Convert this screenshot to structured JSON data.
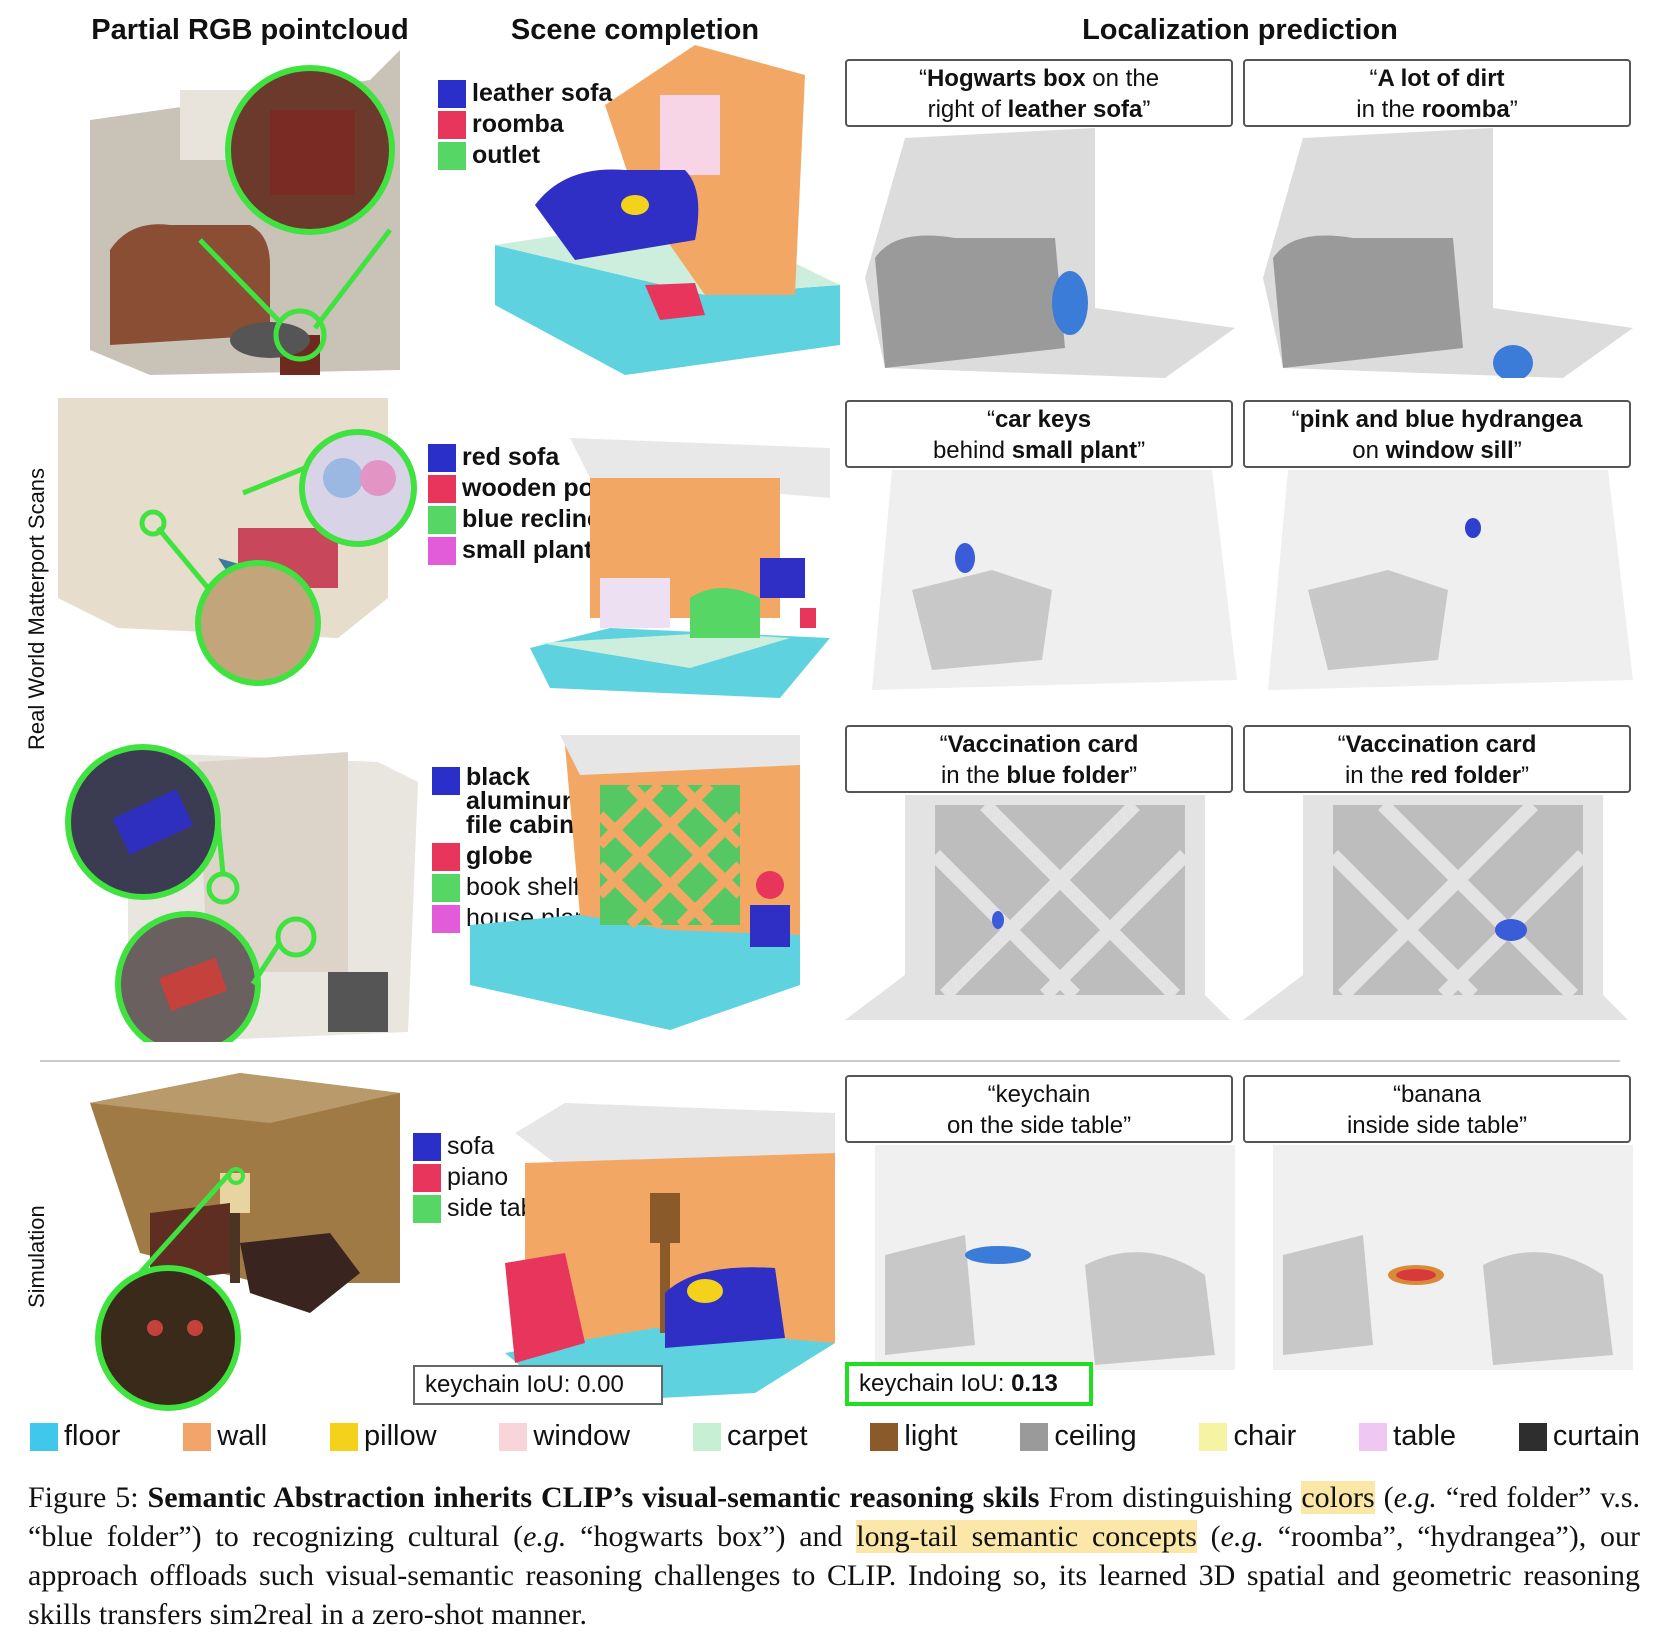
{
  "headers": {
    "col1": "Partial RGB pointcloud",
    "col2": "Scene completion",
    "col3": "Localization prediction"
  },
  "side_labels": {
    "real": "Real World Matterport Scans",
    "sim": "Simulation"
  },
  "rows": [
    {
      "legend": [
        {
          "label": "leather sofa",
          "color": "#2b2fc9"
        },
        {
          "label": "roomba",
          "color": "#e8355b"
        },
        {
          "label": "outlet",
          "color": "#55d665"
        }
      ],
      "queries": [
        {
          "parts": [
            "“",
            {
              "b": "Hogwarts box"
            },
            " on the",
            {
              "br": true
            },
            "right of ",
            {
              "b": "leather sofa"
            },
            "”"
          ]
        },
        {
          "parts": [
            "“",
            {
              "b": "A lot of dirt"
            },
            {
              "br": true
            },
            "in the ",
            {
              "b": "roomba"
            },
            "”"
          ]
        }
      ]
    },
    {
      "legend": [
        {
          "label": "red sofa",
          "color": "#2b2fc9"
        },
        {
          "label": "wooden pouf",
          "color": "#e8355b"
        },
        {
          "label": "blue recliner",
          "color": "#55d665"
        },
        {
          "label": "small plant",
          "color": "#e25bd9"
        }
      ],
      "queries": [
        {
          "parts": [
            "“",
            {
              "b": "car keys"
            },
            {
              "br": true
            },
            "behind ",
            {
              "b": "small plant"
            },
            "”"
          ]
        },
        {
          "parts": [
            "“",
            {
              "b": "pink and blue hydrangea"
            },
            {
              "br": true
            },
            "on ",
            {
              "b": "window sill"
            },
            "”"
          ]
        }
      ]
    },
    {
      "legend": [
        {
          "label": "black aluminum file cabinet",
          "color": "#2b2fc9",
          "bold": true
        },
        {
          "label": "globe",
          "color": "#e8355b",
          "bold": true
        },
        {
          "label": "book shelf",
          "color": "#55d665",
          "bold": false
        },
        {
          "label": "house plant",
          "color": "#e25bd9",
          "bold": false
        }
      ],
      "queries": [
        {
          "parts": [
            "“",
            {
              "b": "Vaccination card"
            },
            {
              "br": true
            },
            "in the ",
            {
              "b": "blue folder"
            },
            "”"
          ]
        },
        {
          "parts": [
            "“",
            {
              "b": "Vaccination card"
            },
            {
              "br": true
            },
            "in the ",
            {
              "b": "red folder"
            },
            "”"
          ]
        }
      ]
    },
    {
      "legend": [
        {
          "label": "sofa",
          "color": "#2b2fc9"
        },
        {
          "label": "piano",
          "color": "#e8355b"
        },
        {
          "label": "side table",
          "color": "#55d665"
        }
      ],
      "queries": [
        {
          "parts": [
            "“keychain",
            {
              "br": true
            },
            "on the side table”"
          ]
        },
        {
          "parts": [
            "“banana",
            {
              "br": true
            },
            "inside side table”"
          ]
        }
      ]
    }
  ],
  "iou": {
    "baseline_label": "keychain IoU: 0.00",
    "ours_prefix": "keychain IoU: ",
    "ours_value": "0.13",
    "ours_border": "#22dd22"
  },
  "bottom_legend": [
    {
      "label": "floor",
      "color": "#3fc8ec"
    },
    {
      "label": "wall",
      "color": "#f2a46a"
    },
    {
      "label": "pillow",
      "color": "#f4d21c"
    },
    {
      "label": "window",
      "color": "#f8d5d8"
    },
    {
      "label": "carpet",
      "color": "#c6efd3"
    },
    {
      "label": "light",
      "color": "#8b5a2b"
    },
    {
      "label": "ceiling",
      "color": "#9a9a9a"
    },
    {
      "label": "chair",
      "color": "#f6f3a3"
    },
    {
      "label": "table",
      "color": "#efc7f3"
    },
    {
      "label": "curtain",
      "color": "#2e2e2e"
    }
  ],
  "caption": {
    "fig": "Figure 5: ",
    "title": "Semantic Abstraction inherits CLIP’s visual-semantic reasoning skils",
    "t1": " From distinguishing ",
    "hl1": "colors",
    "t2": " (",
    "eg1": "e.g.",
    "t3": " “red folder” v.s. “blue folder”) to recognizing cultural (",
    "eg2": "e.g.",
    "t4": " “hogwarts box”) and ",
    "hl2": "long-tail semantic concepts",
    "t5": " (",
    "eg3": "e.g.",
    "t6": " “roomba”, “hydrangea”), our approach offloads such visual-semantic reasoning challenges to CLIP. Indoing so, its learned 3D spatial and geometric reasoning skills transfers sim2real in a zero-shot manner."
  }
}
